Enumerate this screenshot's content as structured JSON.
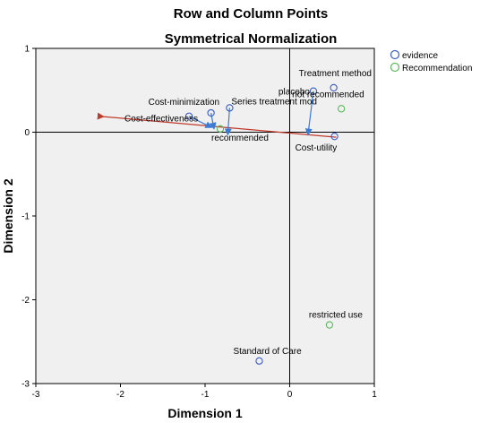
{
  "chart_data": {
    "type": "scatter",
    "title": "Row and Column Points",
    "subtitle": "Symmetrical Normalization",
    "xlabel": "Dimension 1",
    "ylabel": "Dimension 2",
    "xlim": [
      -3,
      1
    ],
    "ylim": [
      -3,
      1
    ],
    "x_ticks": [
      "-3",
      "-2",
      "-1",
      "0",
      "1"
    ],
    "y_ticks": [
      "1",
      "0",
      "-1",
      "-2",
      "-3"
    ],
    "grid": false,
    "legend_position": "top-right",
    "series": [
      {
        "name": "evidence",
        "color": "#3b5bc4",
        "points": [
          {
            "label": "Treatment method",
            "x": 0.52,
            "y": 0.53
          },
          {
            "label": "placebo",
            "x": 0.28,
            "y": 0.49
          },
          {
            "label": "Cost-minimization",
            "x": -0.93,
            "y": 0.23
          },
          {
            "label": "Series treatment mod",
            "x": -0.71,
            "y": 0.29
          },
          {
            "label": "Cost-effectiveness",
            "x": -1.19,
            "y": 0.19
          },
          {
            "label": "Cost-utility",
            "x": 0.53,
            "y": -0.05
          },
          {
            "label": "Standard of Care",
            "x": -0.36,
            "y": -2.73
          }
        ]
      },
      {
        "name": "Recommendation",
        "color": "#5cb85c",
        "points": [
          {
            "label": "not recommended",
            "x": 0.61,
            "y": 0.28
          },
          {
            "label": "recommended",
            "x": -0.82,
            "y": 0.04
          },
          {
            "label": "restricted use",
            "x": 0.47,
            "y": -2.3
          }
        ]
      }
    ],
    "colors": {
      "plot_background": "#f0f0f0",
      "arrow_red": "#c0392b",
      "arrow_blue": "#3a7bd5"
    }
  }
}
